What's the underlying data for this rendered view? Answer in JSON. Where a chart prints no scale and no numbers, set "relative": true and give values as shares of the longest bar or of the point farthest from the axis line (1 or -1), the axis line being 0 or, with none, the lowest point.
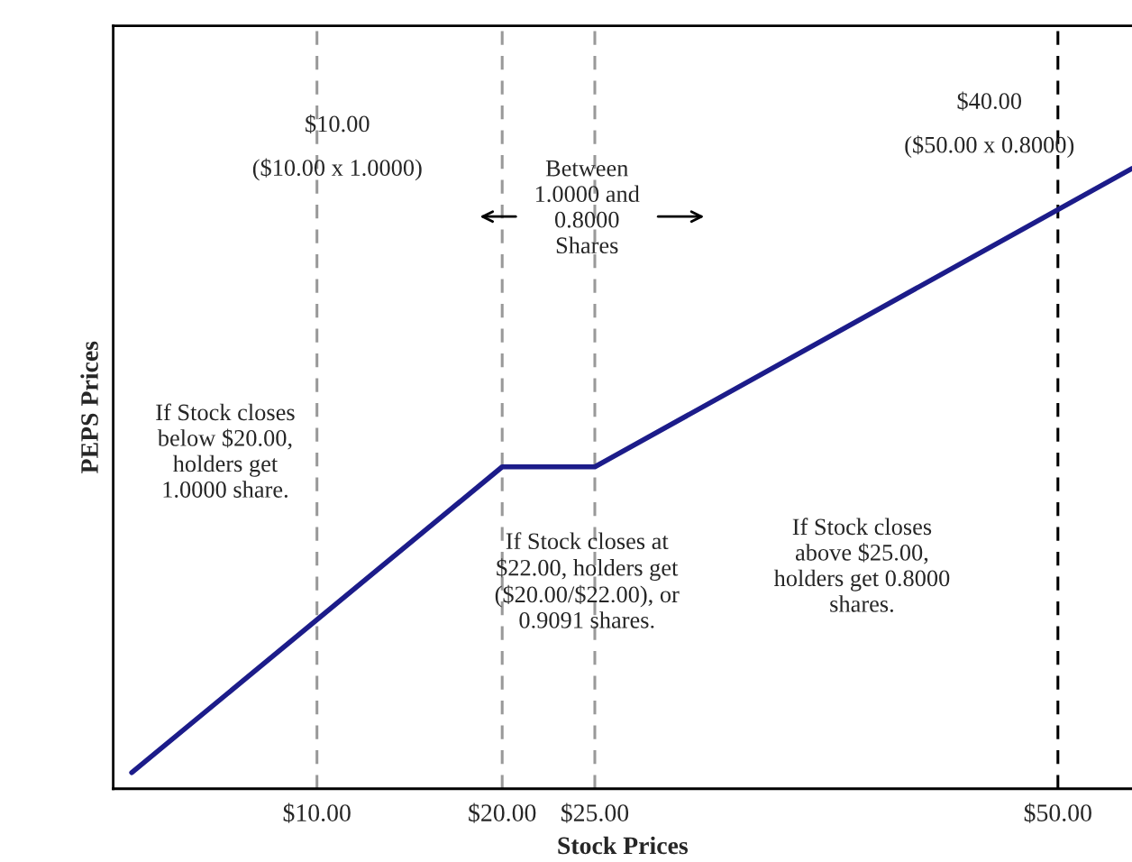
{
  "chart_data": {
    "type": "line",
    "xlabel": "Stock Prices",
    "ylabel": "PEPS Prices",
    "relative": true,
    "x": [
      0,
      20,
      25,
      54
    ],
    "series": [
      {
        "color": "#1c1c8a",
        "values": [
          0.026,
          0.519,
          0.519,
          1.0
        ]
      }
    ],
    "xlim": [
      -1,
      54
    ],
    "xticks": [
      {
        "value": 10,
        "label": "$10.00"
      },
      {
        "value": 20,
        "label": "$20.00"
      },
      {
        "value": 25,
        "label": "$25.00"
      },
      {
        "value": 50,
        "label": "$50.00"
      }
    ],
    "ref_lines": [
      {
        "axis": "x",
        "value": 10,
        "color": "#999999",
        "line_style": "dashed"
      },
      {
        "axis": "x",
        "value": 20,
        "color": "#999999",
        "line_style": "dashed"
      },
      {
        "axis": "x",
        "value": 25,
        "color": "#999999",
        "line_style": "dashed"
      },
      {
        "axis": "x",
        "value": 50,
        "color": "#000000",
        "line_style": "dashed"
      }
    ],
    "annotations": [
      "$10.00\n\n($10.00 x 1.0000)",
      "$40.00\n\n($50.00 x 0.8000)",
      "Between\n1.0000 and\n0.8000\nShares",
      "If Stock closes\nbelow $20.00,\nholders get\n1.0000 share.",
      "If Stock closes at\n$22.00, holders get\n($20.00/$22.00), or\n0.9091 shares.",
      "If Stock closes\nabove $25.00,\nholders get 0.8000\nshares."
    ],
    "grid": false,
    "legend": false,
    "marker": "none",
    "line_style": "solid"
  }
}
